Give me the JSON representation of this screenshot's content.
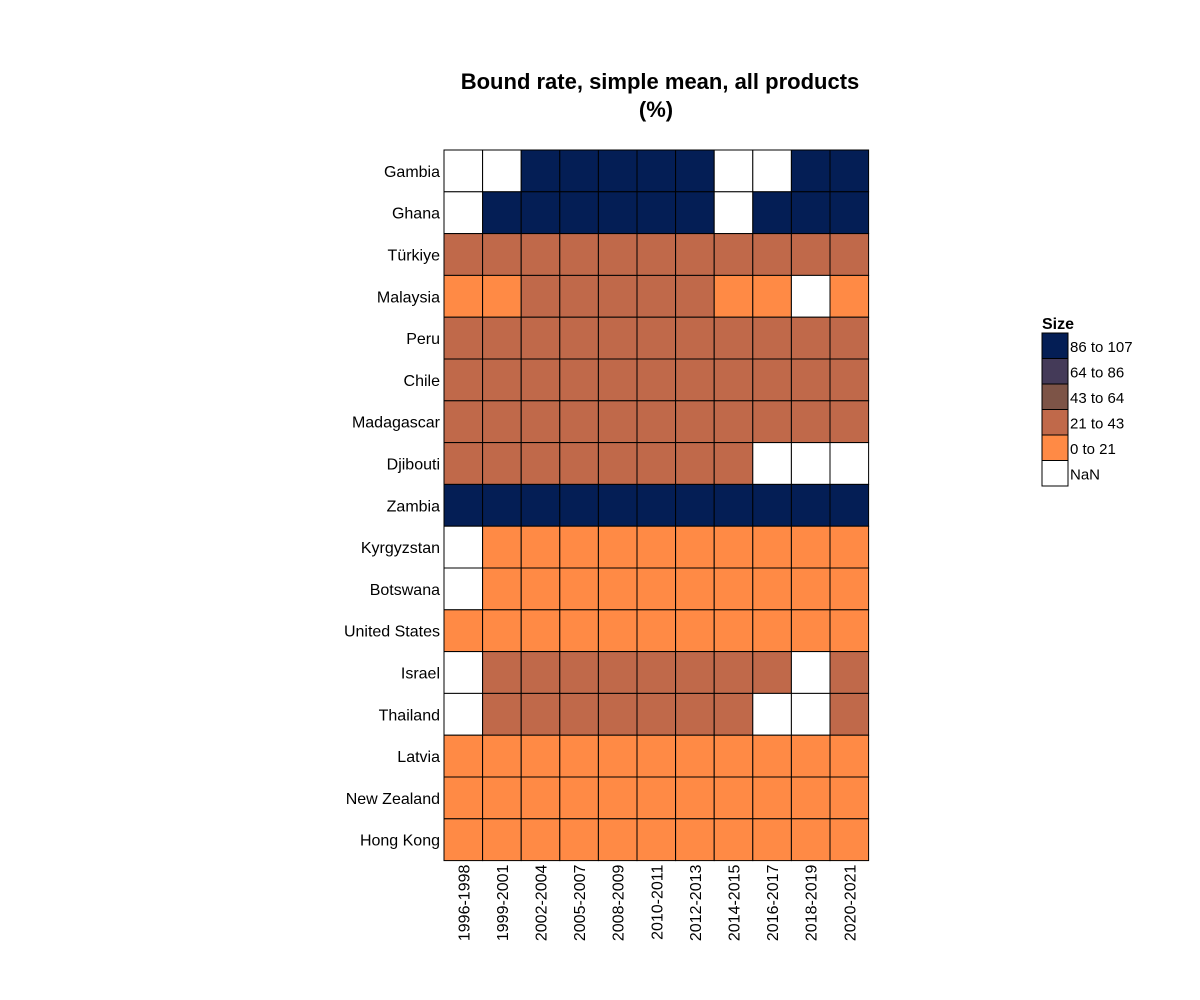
{
  "chart_data": {
    "type": "heatmap",
    "title": "Bound rate, simple mean, all products",
    "subtitle": "(%)",
    "xlabel": "",
    "ylabel": "",
    "x": [
      "1996-1998",
      "1999-2001",
      "2002-2004",
      "2005-2007",
      "2008-2009",
      "2010-2011",
      "2012-2013",
      "2014-2015",
      "2016-2017",
      "2018-2019",
      "2020-2021"
    ],
    "y": [
      "Gambia",
      "Ghana",
      "Türkiye",
      "Malaysia",
      "Peru",
      "Chile",
      "Madagascar",
      "Djibouti",
      "Zambia",
      "Kyrgyzstan",
      "Botswana",
      "United States",
      "Israel",
      "Thailand",
      "Latvia",
      "New Zealand",
      "Hong Kong"
    ],
    "bins": [
      {
        "label": "86 to 107",
        "color": "#041e55"
      },
      {
        "label": "64 to 86",
        "color": "#443a58"
      },
      {
        "label": "43 to 64",
        "color": "#7d5447"
      },
      {
        "label": "21 to 43",
        "color": "#c0694a"
      },
      {
        "label": "0 to 21",
        "color": "#ff8a45"
      },
      {
        "label": "NaN",
        "color": "#ffffff"
      }
    ],
    "cells": [
      [
        "NaN",
        "NaN",
        "86 to 107",
        "86 to 107",
        "86 to 107",
        "86 to 107",
        "86 to 107",
        "NaN",
        "NaN",
        "86 to 107",
        "86 to 107"
      ],
      [
        "NaN",
        "86 to 107",
        "86 to 107",
        "86 to 107",
        "86 to 107",
        "86 to 107",
        "86 to 107",
        "NaN",
        "86 to 107",
        "86 to 107",
        "86 to 107"
      ],
      [
        "21 to 43",
        "21 to 43",
        "21 to 43",
        "21 to 43",
        "21 to 43",
        "21 to 43",
        "21 to 43",
        "21 to 43",
        "21 to 43",
        "21 to 43",
        "21 to 43"
      ],
      [
        "0 to 21",
        "0 to 21",
        "21 to 43",
        "21 to 43",
        "21 to 43",
        "21 to 43",
        "21 to 43",
        "0 to 21",
        "0 to 21",
        "NaN",
        "0 to 21"
      ],
      [
        "21 to 43",
        "21 to 43",
        "21 to 43",
        "21 to 43",
        "21 to 43",
        "21 to 43",
        "21 to 43",
        "21 to 43",
        "21 to 43",
        "21 to 43",
        "21 to 43"
      ],
      [
        "21 to 43",
        "21 to 43",
        "21 to 43",
        "21 to 43",
        "21 to 43",
        "21 to 43",
        "21 to 43",
        "21 to 43",
        "21 to 43",
        "21 to 43",
        "21 to 43"
      ],
      [
        "21 to 43",
        "21 to 43",
        "21 to 43",
        "21 to 43",
        "21 to 43",
        "21 to 43",
        "21 to 43",
        "21 to 43",
        "21 to 43",
        "21 to 43",
        "21 to 43"
      ],
      [
        "21 to 43",
        "21 to 43",
        "21 to 43",
        "21 to 43",
        "21 to 43",
        "21 to 43",
        "21 to 43",
        "21 to 43",
        "NaN",
        "NaN",
        "NaN"
      ],
      [
        "86 to 107",
        "86 to 107",
        "86 to 107",
        "86 to 107",
        "86 to 107",
        "86 to 107",
        "86 to 107",
        "86 to 107",
        "86 to 107",
        "86 to 107",
        "86 to 107"
      ],
      [
        "NaN",
        "0 to 21",
        "0 to 21",
        "0 to 21",
        "0 to 21",
        "0 to 21",
        "0 to 21",
        "0 to 21",
        "0 to 21",
        "0 to 21",
        "0 to 21"
      ],
      [
        "NaN",
        "0 to 21",
        "0 to 21",
        "0 to 21",
        "0 to 21",
        "0 to 21",
        "0 to 21",
        "0 to 21",
        "0 to 21",
        "0 to 21",
        "0 to 21"
      ],
      [
        "0 to 21",
        "0 to 21",
        "0 to 21",
        "0 to 21",
        "0 to 21",
        "0 to 21",
        "0 to 21",
        "0 to 21",
        "0 to 21",
        "0 to 21",
        "0 to 21"
      ],
      [
        "NaN",
        "21 to 43",
        "21 to 43",
        "21 to 43",
        "21 to 43",
        "21 to 43",
        "21 to 43",
        "21 to 43",
        "21 to 43",
        "NaN",
        "21 to 43"
      ],
      [
        "NaN",
        "21 to 43",
        "21 to 43",
        "21 to 43",
        "21 to 43",
        "21 to 43",
        "21 to 43",
        "21 to 43",
        "NaN",
        "NaN",
        "21 to 43"
      ],
      [
        "0 to 21",
        "0 to 21",
        "0 to 21",
        "0 to 21",
        "0 to 21",
        "0 to 21",
        "0 to 21",
        "0 to 21",
        "0 to 21",
        "0 to 21",
        "0 to 21"
      ],
      [
        "0 to 21",
        "0 to 21",
        "0 to 21",
        "0 to 21",
        "0 to 21",
        "0 to 21",
        "0 to 21",
        "0 to 21",
        "0 to 21",
        "0 to 21",
        "0 to 21"
      ],
      [
        "0 to 21",
        "0 to 21",
        "0 to 21",
        "0 to 21",
        "0 to 21",
        "0 to 21",
        "0 to 21",
        "0 to 21",
        "0 to 21",
        "0 to 21",
        "0 to 21"
      ]
    ],
    "legend": {
      "title": "Size",
      "position": "right"
    },
    "grid": false
  }
}
